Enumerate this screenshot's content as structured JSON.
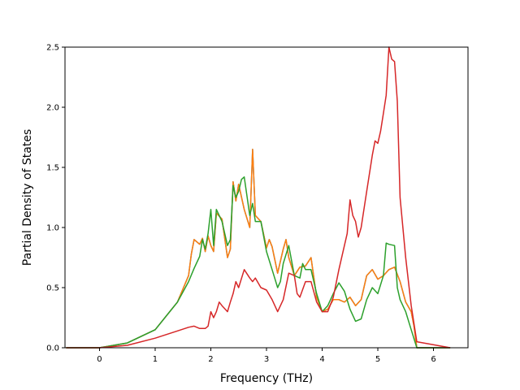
{
  "chart_data": {
    "type": "line",
    "xlabel": "Frequency (THz)",
    "ylabel": "Partial Density of States",
    "xlim": [
      -0.62,
      6.62
    ],
    "ylim": [
      0,
      2.5
    ],
    "xticks": [
      0,
      1,
      2,
      3,
      4,
      5,
      6
    ],
    "yticks": [
      0.0,
      0.5,
      1.0,
      1.5,
      2.0,
      2.5
    ],
    "xtick_labels": [
      "0",
      "1",
      "2",
      "3",
      "4",
      "5",
      "6"
    ],
    "ytick_labels": [
      "0.0",
      "0.5",
      "1.0",
      "1.5",
      "2.0",
      "2.5"
    ],
    "grid": false,
    "series": [
      {
        "color": "#1f77b4",
        "x": [
          -0.6,
          0,
          0.5,
          1.0,
          1.4,
          1.6,
          1.65,
          1.7,
          1.8,
          1.85,
          1.9,
          1.95,
          2.0,
          2.05,
          2.1,
          2.2,
          2.3,
          2.35,
          2.4,
          2.45,
          2.5,
          2.6,
          2.7,
          2.75,
          2.8,
          2.9,
          3.0,
          3.05,
          3.1,
          3.2,
          3.3,
          3.35,
          3.4,
          3.5,
          3.6,
          3.7,
          3.8,
          3.9,
          4.0,
          4.1,
          4.2,
          4.3,
          4.4,
          4.5,
          4.6,
          4.7,
          4.8,
          4.9,
          5.0,
          5.1,
          5.2,
          5.3,
          5.4,
          5.5,
          5.6,
          5.65,
          5.7,
          6.3
        ],
        "y": [
          0,
          0,
          0.04,
          0.15,
          0.38,
          0.6,
          0.78,
          0.9,
          0.86,
          0.91,
          0.8,
          0.93,
          0.85,
          0.8,
          1.12,
          1.07,
          0.75,
          0.82,
          1.38,
          1.22,
          1.36,
          1.15,
          1.0,
          1.65,
          1.1,
          1.05,
          0.83,
          0.9,
          0.84,
          0.62,
          0.82,
          0.9,
          0.75,
          0.6,
          0.67,
          0.68,
          0.75,
          0.42,
          0.3,
          0.32,
          0.4,
          0.4,
          0.38,
          0.42,
          0.35,
          0.4,
          0.6,
          0.65,
          0.57,
          0.6,
          0.65,
          0.67,
          0.55,
          0.38,
          0.3,
          0.18,
          0.0,
          0.0
        ]
      },
      {
        "color": "#ff7f0e",
        "x": [
          -0.6,
          0,
          0.5,
          1.0,
          1.4,
          1.6,
          1.65,
          1.7,
          1.8,
          1.85,
          1.9,
          1.95,
          2.0,
          2.05,
          2.1,
          2.2,
          2.3,
          2.35,
          2.4,
          2.45,
          2.5,
          2.6,
          2.7,
          2.75,
          2.8,
          2.9,
          3.0,
          3.05,
          3.1,
          3.2,
          3.3,
          3.35,
          3.4,
          3.5,
          3.6,
          3.7,
          3.8,
          3.9,
          4.0,
          4.1,
          4.2,
          4.3,
          4.4,
          4.5,
          4.6,
          4.7,
          4.8,
          4.9,
          5.0,
          5.1,
          5.2,
          5.3,
          5.4,
          5.5,
          5.6,
          5.65,
          5.7,
          6.3
        ],
        "y": [
          0,
          0,
          0.04,
          0.15,
          0.38,
          0.6,
          0.78,
          0.9,
          0.86,
          0.91,
          0.8,
          0.93,
          0.85,
          0.8,
          1.12,
          1.07,
          0.75,
          0.82,
          1.38,
          1.22,
          1.36,
          1.15,
          1.0,
          1.65,
          1.1,
          1.05,
          0.83,
          0.9,
          0.84,
          0.62,
          0.82,
          0.9,
          0.75,
          0.6,
          0.67,
          0.68,
          0.75,
          0.42,
          0.3,
          0.32,
          0.4,
          0.4,
          0.38,
          0.42,
          0.35,
          0.4,
          0.6,
          0.65,
          0.57,
          0.6,
          0.65,
          0.67,
          0.55,
          0.38,
          0.3,
          0.18,
          0.0,
          0.0
        ]
      },
      {
        "color": "#2ca02c",
        "x": [
          -0.6,
          0,
          0.5,
          1.0,
          1.4,
          1.6,
          1.7,
          1.8,
          1.85,
          1.9,
          1.95,
          2.0,
          2.05,
          2.1,
          2.15,
          2.2,
          2.3,
          2.35,
          2.4,
          2.45,
          2.5,
          2.55,
          2.6,
          2.7,
          2.75,
          2.8,
          2.9,
          3.0,
          3.1,
          3.2,
          3.25,
          3.3,
          3.4,
          3.5,
          3.6,
          3.65,
          3.7,
          3.8,
          3.9,
          4.0,
          4.1,
          4.2,
          4.3,
          4.4,
          4.5,
          4.6,
          4.7,
          4.8,
          4.9,
          5.0,
          5.1,
          5.15,
          5.2,
          5.3,
          5.35,
          5.4,
          5.5,
          5.6,
          5.7,
          6.3
        ],
        "y": [
          0,
          0,
          0.04,
          0.15,
          0.38,
          0.55,
          0.66,
          0.76,
          0.9,
          0.82,
          0.95,
          1.15,
          0.85,
          1.15,
          1.1,
          1.05,
          0.85,
          0.9,
          1.35,
          1.25,
          1.3,
          1.4,
          1.42,
          1.1,
          1.2,
          1.05,
          1.05,
          0.8,
          0.65,
          0.5,
          0.55,
          0.7,
          0.85,
          0.6,
          0.58,
          0.7,
          0.65,
          0.65,
          0.45,
          0.3,
          0.35,
          0.45,
          0.54,
          0.47,
          0.32,
          0.22,
          0.24,
          0.4,
          0.5,
          0.45,
          0.6,
          0.87,
          0.86,
          0.85,
          0.5,
          0.4,
          0.3,
          0.15,
          0.0,
          0.0
        ]
      },
      {
        "color": "#d62728",
        "x": [
          -0.6,
          0,
          0.5,
          1.0,
          1.4,
          1.6,
          1.7,
          1.8,
          1.9,
          1.95,
          2.0,
          2.05,
          2.1,
          2.15,
          2.2,
          2.3,
          2.35,
          2.4,
          2.45,
          2.5,
          2.6,
          2.7,
          2.75,
          2.8,
          2.9,
          3.0,
          3.1,
          3.2,
          3.3,
          3.4,
          3.5,
          3.55,
          3.6,
          3.7,
          3.8,
          3.9,
          4.0,
          4.1,
          4.2,
          4.3,
          4.4,
          4.45,
          4.5,
          4.55,
          4.6,
          4.65,
          4.7,
          4.8,
          4.9,
          4.95,
          5.0,
          5.05,
          5.1,
          5.15,
          5.2,
          5.25,
          5.3,
          5.35,
          5.4,
          5.5,
          5.6,
          5.7,
          6.3
        ],
        "y": [
          0,
          0,
          0.02,
          0.08,
          0.14,
          0.17,
          0.18,
          0.16,
          0.16,
          0.18,
          0.3,
          0.25,
          0.3,
          0.38,
          0.35,
          0.3,
          0.38,
          0.45,
          0.55,
          0.5,
          0.65,
          0.58,
          0.55,
          0.58,
          0.5,
          0.48,
          0.4,
          0.3,
          0.4,
          0.62,
          0.6,
          0.45,
          0.42,
          0.55,
          0.55,
          0.38,
          0.3,
          0.3,
          0.42,
          0.65,
          0.85,
          0.95,
          1.23,
          1.1,
          1.05,
          0.92,
          1.0,
          1.3,
          1.6,
          1.72,
          1.7,
          1.8,
          1.95,
          2.1,
          2.5,
          2.4,
          2.38,
          2.05,
          1.25,
          0.75,
          0.35,
          0.05,
          0.0
        ]
      }
    ]
  }
}
